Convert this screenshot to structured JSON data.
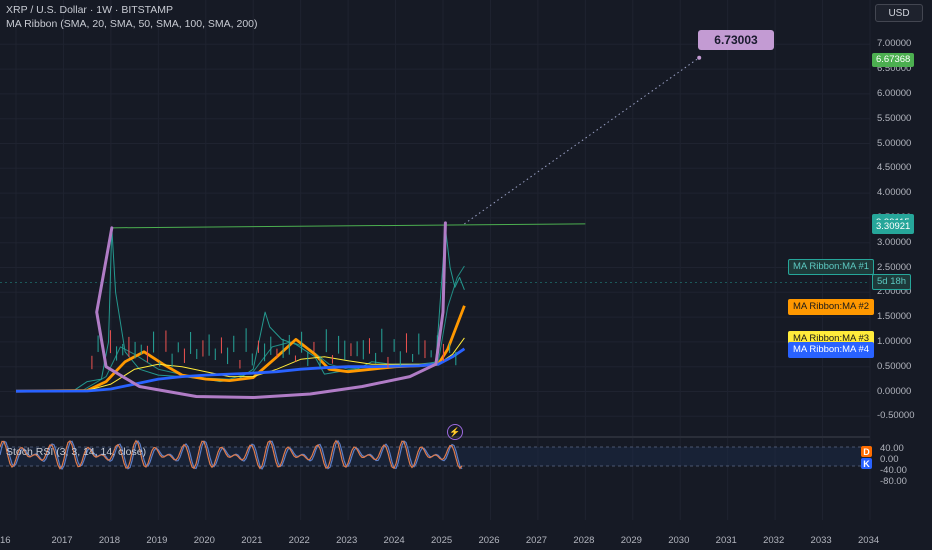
{
  "header": {
    "title": "XRP / U.S. Dollar · 1W · BITSTAMP",
    "indicator": "MA Ribbon (SMA, 20, SMA, 50, SMA, 100, SMA, 200)",
    "currency": "USD"
  },
  "price_axis": {
    "ticks": [
      "7.00000",
      "6.50000",
      "6.00000",
      "5.50000",
      "5.00000",
      "4.50000",
      "4.00000",
      "3.50000",
      "3.00000",
      "2.50000",
      "2.00000",
      "1.50000",
      "1.00000",
      "0.50000",
      "0.00000",
      "-0.50000"
    ],
    "badges": [
      {
        "text": "6.67368",
        "price": 6.67368,
        "bg": "#4caf50",
        "fg": "#ffffff"
      },
      {
        "text": "3.43853",
        "price": 3.43853,
        "bg": "#26a69a",
        "fg": "#ffffff"
      },
      {
        "text": "3.39115",
        "price": 3.39115,
        "bg": "#26a69a",
        "fg": "#ffffff"
      },
      {
        "text": "3.30921",
        "price": 3.30921,
        "bg": "#26a69a",
        "fg": "#ffffff"
      }
    ],
    "countdown": "5d 18h",
    "ma_labels": [
      {
        "text": "MA Ribbon:MA #1",
        "price": 2.53,
        "bg": "#1e3a3a",
        "fg": "#5cc8c0",
        "border": "#26a69a"
      },
      {
        "text": "MA Ribbon:MA #2",
        "price": 1.73,
        "bg": "#ff9800",
        "fg": "#1a1a1a",
        "border": "#ff9800"
      },
      {
        "text": "MA Ribbon:MA #3",
        "price": 1.08,
        "bg": "#ffeb3b",
        "fg": "#1a1a1a",
        "border": "#ffeb3b"
      },
      {
        "text": "MA Ribbon:MA #4",
        "price": 0.86,
        "bg": "#2962ff",
        "fg": "#ffffff",
        "border": "#2962ff"
      }
    ]
  },
  "time_axis": [
    "16",
    "2017",
    "2018",
    "2019",
    "2020",
    "2021",
    "2022",
    "2023",
    "2024",
    "2025",
    "2026",
    "2027",
    "2028",
    "2029",
    "2030",
    "2031",
    "2032",
    "2033",
    "2034"
  ],
  "projection_label": "6.73003",
  "stoch_rsi": {
    "title": "Stoch RSI (3, 3, 14, 14, close)",
    "ticks": [
      "40.00",
      "0.00",
      "-40.00",
      "-80.00"
    ],
    "flags": [
      {
        "text": "D",
        "bg": "#ff6d00"
      },
      {
        "text": "K",
        "bg": "#2962ff"
      }
    ]
  },
  "colors": {
    "background": "#161a25",
    "price_line": "#26a69a",
    "resistance": "#4caf50",
    "cup": "#b07cc6",
    "ma1": "#26a69a",
    "ma2": "#ff9800",
    "ma3": "#ffeb3b",
    "ma4": "#2962ff"
  },
  "chart_data": {
    "type": "line",
    "symbol": "XRP/USD",
    "timeframe": "1W",
    "ylim": [
      -0.75,
      7.35
    ],
    "xlim": [
      2016.0,
      2034.0
    ],
    "series": [
      {
        "name": "",
        "values_x": [
          2016.0,
          2017.2,
          2017.5,
          2017.8,
          2017.95,
          2018.02,
          2018.1,
          2018.3,
          2018.6,
          2019.0,
          2019.5,
          2020.0,
          2020.3,
          2020.7,
          2021.0,
          2021.25,
          2021.35,
          2021.6,
          2021.9,
          2022.3,
          2022.5,
          2022.8,
          2023.2,
          2023.5,
          2023.9,
          2024.3,
          2024.7,
          2024.85,
          2025.0,
          2025.05,
          2025.15,
          2025.25,
          2025.35,
          2025.45
        ],
        "values": [
          0.006,
          0.006,
          0.2,
          0.25,
          1.0,
          3.3,
          2.0,
          0.8,
          0.45,
          0.33,
          0.3,
          0.25,
          0.2,
          0.26,
          0.45,
          1.6,
          1.3,
          1.05,
          0.95,
          0.7,
          0.35,
          0.4,
          0.45,
          0.6,
          0.55,
          0.55,
          0.55,
          0.6,
          2.6,
          3.3,
          2.5,
          2.1,
          2.3,
          2.05
        ]
      },
      {
        "name": "MA Ribbon:MA #1",
        "values_x": [
          2016.0,
          2017.4,
          2017.9,
          2018.2,
          2018.5,
          2019.0,
          2019.6,
          2020.0,
          2020.5,
          2021.0,
          2021.4,
          2021.8,
          2022.2,
          2022.6,
          2023.0,
          2023.5,
          2024.0,
          2024.5,
          2024.9,
          2025.1,
          2025.3,
          2025.45
        ],
        "values": [
          0.006,
          0.02,
          0.3,
          0.9,
          0.75,
          0.45,
          0.32,
          0.27,
          0.25,
          0.4,
          0.9,
          1.0,
          0.85,
          0.55,
          0.45,
          0.5,
          0.55,
          0.55,
          0.6,
          1.7,
          2.3,
          2.53
        ]
      },
      {
        "name": "MA Ribbon:MA #2",
        "values_x": [
          2016.0,
          2017.5,
          2017.9,
          2018.3,
          2018.7,
          2019.1,
          2019.5,
          2020.0,
          2020.5,
          2021.0,
          2021.5,
          2021.9,
          2022.3,
          2022.6,
          2023.0,
          2023.5,
          2024.0,
          2024.5,
          2024.9,
          2025.1,
          2025.3,
          2025.45
        ],
        "values": [
          0.006,
          0.02,
          0.2,
          0.6,
          0.8,
          0.55,
          0.33,
          0.25,
          0.22,
          0.28,
          0.7,
          1.05,
          0.75,
          0.45,
          0.4,
          0.45,
          0.5,
          0.52,
          0.55,
          0.85,
          1.35,
          1.73
        ]
      },
      {
        "name": "MA Ribbon:MA #3",
        "values_x": [
          2016.0,
          2017.5,
          2018.0,
          2018.5,
          2019.0,
          2019.5,
          2020.0,
          2020.5,
          2021.0,
          2021.5,
          2022.0,
          2022.5,
          2023.0,
          2023.5,
          2024.0,
          2024.5,
          2024.9,
          2025.2,
          2025.45
        ],
        "values": [
          0.006,
          0.02,
          0.15,
          0.45,
          0.55,
          0.5,
          0.4,
          0.3,
          0.3,
          0.45,
          0.65,
          0.7,
          0.62,
          0.55,
          0.55,
          0.55,
          0.55,
          0.75,
          1.08
        ]
      },
      {
        "name": "MA Ribbon:MA #4",
        "values_x": [
          2016.0,
          2017.5,
          2018.0,
          2018.5,
          2019.0,
          2019.5,
          2020.0,
          2020.5,
          2021.0,
          2021.5,
          2022.0,
          2022.5,
          2023.0,
          2023.5,
          2024.0,
          2024.5,
          2024.9,
          2025.2,
          2025.45
        ],
        "values": [
          0.006,
          0.01,
          0.05,
          0.15,
          0.25,
          0.3,
          0.33,
          0.35,
          0.37,
          0.4,
          0.45,
          0.48,
          0.5,
          0.5,
          0.51,
          0.52,
          0.55,
          0.7,
          0.86
        ]
      }
    ],
    "resistance_line": {
      "x": [
        2018.02,
        2028.0
      ],
      "y": [
        3.3,
        3.38
      ]
    },
    "cup_curve": {
      "x": [
        2018.02,
        2017.7,
        2017.9,
        2018.6,
        2019.8,
        2021.0,
        2022.2,
        2023.3,
        2024.3,
        2024.85,
        2025.0,
        2025.05
      ],
      "y": [
        3.3,
        1.6,
        0.5,
        0.1,
        -0.1,
        -0.12,
        -0.05,
        0.1,
        0.3,
        0.55,
        1.6,
        3.4
      ]
    },
    "projection": {
      "x": [
        2025.45,
        2030.4
      ],
      "y": [
        3.38,
        6.73
      ],
      "label": "6.73003"
    },
    "current_price_level": 2.2
  }
}
